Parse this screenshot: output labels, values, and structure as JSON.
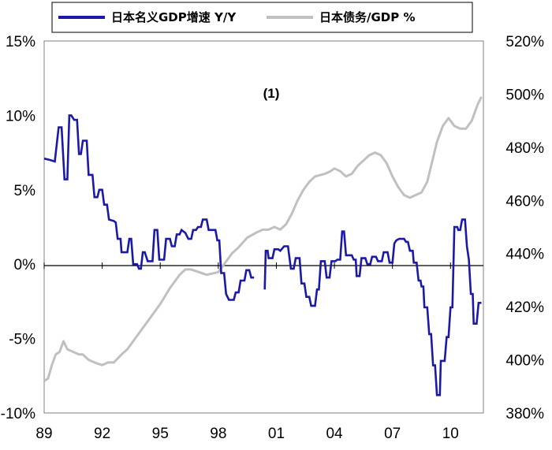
{
  "chart_data": {
    "type": "line",
    "annotation": "(1)",
    "legend": {
      "placement": "top",
      "boxed": true
    },
    "grid": false,
    "x_ticks": [
      "89",
      "92",
      "95",
      "98",
      "01",
      "04",
      "07",
      "10"
    ],
    "xlim": [
      1989,
      2011.7
    ],
    "y_left": {
      "ticks": [
        "15%",
        "10%",
        "5%",
        "0%",
        "-5%",
        "-10%"
      ],
      "range": [
        -10,
        15
      ],
      "unit": "%"
    },
    "y_right": {
      "ticks": [
        "520%",
        "500%",
        "480%",
        "460%",
        "440%",
        "420%",
        "400%",
        "380%"
      ],
      "range": [
        380,
        520
      ],
      "unit": "%"
    },
    "series": [
      {
        "name": "日本名义GDP增速 Y/Y",
        "color": "#1a1aa6",
        "axis": "left",
        "points": [
          [
            1989.0,
            7.1
          ],
          [
            1989.3,
            7.0
          ],
          [
            1989.55,
            6.9
          ],
          [
            1989.75,
            9.2
          ],
          [
            1989.9,
            9.2
          ],
          [
            1990.05,
            5.7
          ],
          [
            1990.2,
            5.7
          ],
          [
            1990.3,
            10.0
          ],
          [
            1990.4,
            10.0
          ],
          [
            1990.55,
            9.7
          ],
          [
            1990.7,
            9.7
          ],
          [
            1990.8,
            7.4
          ],
          [
            1990.9,
            7.4
          ],
          [
            1991.0,
            8.3
          ],
          [
            1991.2,
            8.3
          ],
          [
            1991.3,
            6.0
          ],
          [
            1991.5,
            6.0
          ],
          [
            1991.6,
            4.5
          ],
          [
            1991.75,
            4.5
          ],
          [
            1991.85,
            5.0
          ],
          [
            1992.0,
            5.0
          ],
          [
            1992.1,
            4.0
          ],
          [
            1992.25,
            4.0
          ],
          [
            1992.35,
            3.0
          ],
          [
            1992.6,
            2.9
          ],
          [
            1992.7,
            2.8
          ],
          [
            1992.8,
            1.7
          ],
          [
            1992.95,
            1.7
          ],
          [
            1993.0,
            0.8
          ],
          [
            1993.3,
            0.8
          ],
          [
            1993.4,
            1.7
          ],
          [
            1993.5,
            1.7
          ],
          [
            1993.6,
            0.0
          ],
          [
            1993.8,
            0.0
          ],
          [
            1993.9,
            -0.3
          ],
          [
            1994.0,
            -0.3
          ],
          [
            1994.1,
            0.8
          ],
          [
            1994.2,
            0.8
          ],
          [
            1994.35,
            0.2
          ],
          [
            1994.6,
            0.2
          ],
          [
            1994.7,
            2.3
          ],
          [
            1994.85,
            2.3
          ],
          [
            1994.95,
            0.3
          ],
          [
            1995.2,
            0.3
          ],
          [
            1995.3,
            1.7
          ],
          [
            1995.5,
            1.7
          ],
          [
            1995.6,
            1.2
          ],
          [
            1995.75,
            1.2
          ],
          [
            1995.85,
            2.0
          ],
          [
            1996.0,
            2.0
          ],
          [
            1996.1,
            2.3
          ],
          [
            1996.3,
            2.1
          ],
          [
            1996.45,
            1.7
          ],
          [
            1996.6,
            1.7
          ],
          [
            1996.7,
            2.3
          ],
          [
            1996.85,
            2.3
          ],
          [
            1996.95,
            2.5
          ],
          [
            1997.1,
            2.5
          ],
          [
            1997.2,
            3.0
          ],
          [
            1997.4,
            3.0
          ],
          [
            1997.5,
            2.3
          ],
          [
            1997.85,
            2.3
          ],
          [
            1997.95,
            1.6
          ],
          [
            1998.05,
            1.6
          ],
          [
            1998.15,
            -0.6
          ],
          [
            1998.3,
            -0.6
          ],
          [
            1998.4,
            -2.0
          ],
          [
            1998.55,
            -2.4
          ],
          [
            1998.8,
            -2.4
          ],
          [
            1998.9,
            -1.9
          ],
          [
            1999.05,
            -1.9
          ],
          [
            1999.15,
            -1.1
          ],
          [
            1999.35,
            -1.1
          ],
          [
            1999.45,
            -0.4
          ],
          [
            1999.6,
            -0.4
          ],
          [
            1999.7,
            -0.9
          ],
          [
            1999.85,
            -0.9
          ]
        ],
        "points_segment_2": [
          [
            2000.4,
            -1.7
          ],
          [
            2000.45,
            0.9
          ],
          [
            2000.55,
            0.9
          ],
          [
            2000.6,
            0.4
          ],
          [
            2000.8,
            0.4
          ],
          [
            2000.9,
            1.0
          ],
          [
            2001.1,
            1.0
          ],
          [
            2001.2,
            0.9
          ],
          [
            2001.4,
            1.2
          ],
          [
            2001.6,
            1.2
          ],
          [
            2001.75,
            -0.3
          ],
          [
            2001.9,
            -0.3
          ],
          [
            2002.0,
            0.4
          ],
          [
            2002.2,
            0.4
          ],
          [
            2002.3,
            -1.3
          ],
          [
            2002.45,
            -1.3
          ],
          [
            2002.55,
            -2.2
          ],
          [
            2002.7,
            -2.2
          ],
          [
            2002.8,
            -2.8
          ],
          [
            2003.0,
            -2.8
          ],
          [
            2003.1,
            -1.7
          ],
          [
            2003.2,
            -1.7
          ],
          [
            2003.3,
            0.2
          ],
          [
            2003.5,
            0.2
          ],
          [
            2003.6,
            -0.9
          ],
          [
            2003.75,
            -0.9
          ],
          [
            2003.85,
            0.2
          ],
          [
            2004.05,
            0.2
          ],
          [
            2004.15,
            0.3
          ],
          [
            2004.3,
            0.3
          ],
          [
            2004.4,
            2.2
          ],
          [
            2004.5,
            2.2
          ],
          [
            2004.6,
            0.6
          ],
          [
            2004.9,
            0.6
          ],
          [
            2005.0,
            0.3
          ],
          [
            2005.1,
            0.3
          ],
          [
            2005.15,
            -0.8
          ],
          [
            2005.3,
            -0.8
          ],
          [
            2005.4,
            0.4
          ],
          [
            2005.6,
            0.4
          ],
          [
            2005.7,
            0.0
          ],
          [
            2005.85,
            0.0
          ],
          [
            2005.95,
            0.5
          ],
          [
            2006.15,
            0.5
          ],
          [
            2006.25,
            0.2
          ],
          [
            2006.45,
            0.2
          ],
          [
            2006.55,
            0.8
          ],
          [
            2006.75,
            0.8
          ],
          [
            2006.85,
            0.1
          ],
          [
            2007.0,
            0.1
          ],
          [
            2007.1,
            1.4
          ],
          [
            2007.2,
            1.6
          ],
          [
            2007.35,
            1.7
          ],
          [
            2007.6,
            1.7
          ],
          [
            2007.7,
            1.5
          ],
          [
            2007.8,
            1.5
          ],
          [
            2007.9,
            0.9
          ],
          [
            2008.05,
            0.9
          ],
          [
            2008.1,
            0.1
          ],
          [
            2008.25,
            0.1
          ],
          [
            2008.35,
            -1.1
          ],
          [
            2008.45,
            -1.1
          ],
          [
            2008.5,
            -1.5
          ],
          [
            2008.6,
            -1.5
          ],
          [
            2008.65,
            -2.9
          ],
          [
            2008.8,
            -2.9
          ],
          [
            2008.9,
            -4.7
          ],
          [
            2009.0,
            -4.7
          ],
          [
            2009.1,
            -6.8
          ],
          [
            2009.2,
            -6.8
          ],
          [
            2009.3,
            -8.8
          ],
          [
            2009.45,
            -8.8
          ],
          [
            2009.5,
            -6.5
          ],
          [
            2009.7,
            -6.5
          ],
          [
            2009.8,
            -4.9
          ],
          [
            2009.9,
            -4.9
          ],
          [
            2010.0,
            -2.9
          ],
          [
            2010.1,
            -2.9
          ],
          [
            2010.2,
            2.5
          ],
          [
            2010.35,
            2.5
          ],
          [
            2010.4,
            2.3
          ],
          [
            2010.5,
            2.3
          ],
          [
            2010.6,
            3.0
          ],
          [
            2010.75,
            3.0
          ],
          [
            2010.85,
            1.2
          ],
          [
            2010.95,
            0.3
          ],
          [
            2011.05,
            -2.0
          ],
          [
            2011.15,
            -2.0
          ],
          [
            2011.2,
            -4.0
          ],
          [
            2011.35,
            -4.0
          ],
          [
            2011.45,
            -2.6
          ],
          [
            2011.6,
            -2.6
          ]
        ]
      },
      {
        "name": "日本债务/GDP %",
        "color": "#c0c0c0",
        "axis": "right",
        "points": [
          [
            1989.0,
            392
          ],
          [
            1989.2,
            393
          ],
          [
            1989.4,
            398
          ],
          [
            1989.6,
            402
          ],
          [
            1989.8,
            403
          ],
          [
            1990.0,
            407
          ],
          [
            1990.2,
            404
          ],
          [
            1990.5,
            403
          ],
          [
            1990.8,
            402
          ],
          [
            1991.0,
            402
          ],
          [
            1991.3,
            400
          ],
          [
            1991.6,
            399
          ],
          [
            1992.0,
            398
          ],
          [
            1992.3,
            399
          ],
          [
            1992.6,
            399
          ],
          [
            1993.0,
            402
          ],
          [
            1993.3,
            404
          ],
          [
            1993.7,
            408
          ],
          [
            1994.0,
            411
          ],
          [
            1994.5,
            416
          ],
          [
            1995.0,
            421
          ],
          [
            1995.5,
            427
          ],
          [
            1996.0,
            432
          ],
          [
            1996.3,
            434
          ],
          [
            1996.6,
            434
          ],
          [
            1997.0,
            433
          ],
          [
            1997.4,
            432
          ],
          [
            1998.0,
            433
          ],
          [
            1998.3,
            436
          ],
          [
            1998.7,
            440
          ],
          [
            1999.0,
            442
          ],
          [
            1999.5,
            446
          ],
          [
            2000.0,
            448
          ],
          [
            2000.3,
            449
          ],
          [
            2000.6,
            449
          ],
          [
            2000.9,
            450
          ],
          [
            2001.2,
            449
          ],
          [
            2001.5,
            451
          ],
          [
            2001.8,
            455
          ],
          [
            2002.1,
            460
          ],
          [
            2002.4,
            464
          ],
          [
            2002.7,
            467
          ],
          [
            2003.0,
            469
          ],
          [
            2003.5,
            470
          ],
          [
            2003.8,
            471
          ],
          [
            2004.0,
            472
          ],
          [
            2004.3,
            471
          ],
          [
            2004.6,
            469
          ],
          [
            2004.9,
            470
          ],
          [
            2005.2,
            473
          ],
          [
            2005.5,
            475
          ],
          [
            2005.8,
            477
          ],
          [
            2006.1,
            478
          ],
          [
            2006.4,
            477
          ],
          [
            2006.7,
            474
          ],
          [
            2007.0,
            469
          ],
          [
            2007.3,
            465
          ],
          [
            2007.6,
            462
          ],
          [
            2007.9,
            461
          ],
          [
            2008.2,
            462
          ],
          [
            2008.5,
            463
          ],
          [
            2008.8,
            467
          ],
          [
            2009.0,
            473
          ],
          [
            2009.3,
            482
          ],
          [
            2009.6,
            488
          ],
          [
            2009.9,
            491
          ],
          [
            2010.2,
            488
          ],
          [
            2010.5,
            487
          ],
          [
            2010.8,
            487
          ],
          [
            2011.1,
            490
          ],
          [
            2011.4,
            496
          ],
          [
            2011.6,
            499
          ]
        ]
      }
    ]
  }
}
